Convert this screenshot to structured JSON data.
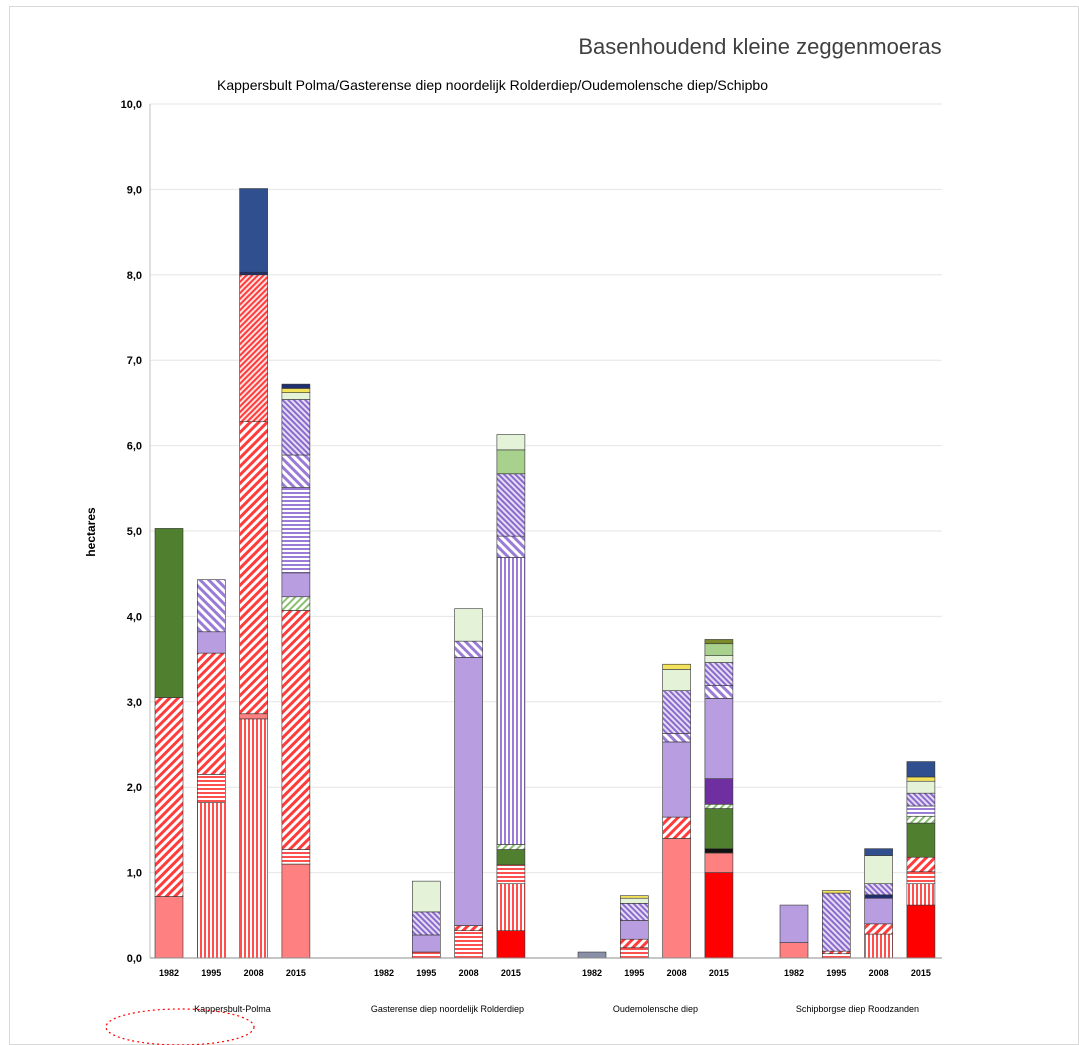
{
  "chart_data": {
    "type": "bar",
    "stacked": true,
    "title": "Basenhoudend kleine zeggenmoeras",
    "subtitle": "Kappersbult Polma/Gasterense diep noordelijk Rolderdiep/Oudemolensche diep/Schipbo",
    "ylabel": "hectares",
    "xlabel": "",
    "ylim": [
      0,
      10
    ],
    "yticks": [
      "0,0",
      "1,0",
      "2,0",
      "3,0",
      "4,0",
      "5,0",
      "6,0",
      "7,0",
      "8,0",
      "9,0",
      "10,0"
    ],
    "grid": true,
    "legend": "none",
    "groups": [
      {
        "name": "Kappersbult-Polma",
        "years": [
          "1982",
          "1995",
          "2008",
          "2015"
        ]
      },
      {
        "name": "Gasterense diep noordelijk Rolderdiep",
        "years": [
          "1982",
          "1995",
          "2008",
          "2015"
        ]
      },
      {
        "name": "Oudemolensche diep",
        "years": [
          "1982",
          "1995",
          "2008",
          "2015"
        ]
      },
      {
        "name": "Schipborgse diep Roodzanden",
        "years": [
          "1982",
          "1995",
          "2008",
          "2015"
        ]
      }
    ],
    "bars": [
      {
        "group": 0,
        "year": "1982",
        "segments": [
          {
            "value": 0.72,
            "style": "pink-solid"
          },
          {
            "value": 2.33,
            "style": "red-diag"
          },
          {
            "value": 1.98,
            "style": "green-dark"
          }
        ]
      },
      {
        "group": 0,
        "year": "1995",
        "segments": [
          {
            "value": 1.82,
            "style": "red-vert"
          },
          {
            "value": 0.33,
            "style": "red-horiz"
          },
          {
            "value": 1.42,
            "style": "red-diag"
          },
          {
            "value": 0.25,
            "style": "lavender-solid"
          },
          {
            "value": 0.61,
            "style": "lavender-diag"
          }
        ]
      },
      {
        "group": 0,
        "year": "2008",
        "segments": [
          {
            "value": 2.8,
            "style": "red-vert"
          },
          {
            "value": 0.06,
            "style": "pink-solid"
          },
          {
            "value": 3.42,
            "style": "red-diag"
          },
          {
            "value": 1.72,
            "style": "red-diag-dense"
          },
          {
            "value": 0.03,
            "style": "navy-solid"
          },
          {
            "value": 0.98,
            "style": "blue-dark"
          }
        ]
      },
      {
        "group": 0,
        "year": "2015",
        "segments": [
          {
            "value": 1.1,
            "style": "pink-solid"
          },
          {
            "value": 0.17,
            "style": "red-horiz"
          },
          {
            "value": 2.8,
            "style": "red-diag"
          },
          {
            "value": 0.16,
            "style": "lightgreen-diag"
          },
          {
            "value": 0.28,
            "style": "lavender-solid"
          },
          {
            "value": 1.0,
            "style": "purple-horiz"
          },
          {
            "value": 0.38,
            "style": "lavender-diag"
          },
          {
            "value": 0.65,
            "style": "purple-diag-dense"
          },
          {
            "value": 0.08,
            "style": "pale-green"
          },
          {
            "value": 0.05,
            "style": "yellow-solid"
          },
          {
            "value": 0.05,
            "style": "navy-solid"
          }
        ]
      },
      {
        "group": 1,
        "year": "1995",
        "segments": [
          {
            "value": 0.07,
            "style": "red-horiz"
          },
          {
            "value": 0.2,
            "style": "lavender-solid"
          },
          {
            "value": 0.27,
            "style": "purple-diag-dense"
          },
          {
            "value": 0.36,
            "style": "pale-green"
          }
        ]
      },
      {
        "group": 1,
        "year": "2008",
        "segments": [
          {
            "value": 0.32,
            "style": "red-horiz"
          },
          {
            "value": 0.06,
            "style": "red-diag"
          },
          {
            "value": 3.14,
            "style": "lavender-solid"
          },
          {
            "value": 0.19,
            "style": "lavender-diag"
          },
          {
            "value": 0.38,
            "style": "pale-green"
          }
        ]
      },
      {
        "group": 1,
        "year": "2015",
        "segments": [
          {
            "value": 0.32,
            "style": "red-solid"
          },
          {
            "value": 0.55,
            "style": "red-vert"
          },
          {
            "value": 0.22,
            "style": "red-horiz"
          },
          {
            "value": 0.18,
            "style": "green-dark"
          },
          {
            "value": 0.06,
            "style": "lightgreen-diag"
          },
          {
            "value": 3.36,
            "style": "purple-vert"
          },
          {
            "value": 0.25,
            "style": "lavender-diag"
          },
          {
            "value": 0.73,
            "style": "purple-diag-dense"
          },
          {
            "value": 0.28,
            "style": "light-green"
          },
          {
            "value": 0.18,
            "style": "pale-green"
          }
        ]
      },
      {
        "group": 2,
        "year": "1982",
        "segments": [
          {
            "value": 0.07,
            "style": "slate-blue"
          }
        ]
      },
      {
        "group": 2,
        "year": "1995",
        "segments": [
          {
            "value": 0.12,
            "style": "red-horiz"
          },
          {
            "value": 0.1,
            "style": "red-diag"
          },
          {
            "value": 0.22,
            "style": "lavender-solid"
          },
          {
            "value": 0.2,
            "style": "purple-diag-dense"
          },
          {
            "value": 0.06,
            "style": "pale-green"
          },
          {
            "value": 0.03,
            "style": "yellow-solid"
          }
        ]
      },
      {
        "group": 2,
        "year": "2008",
        "segments": [
          {
            "value": 1.4,
            "style": "pink-solid"
          },
          {
            "value": 0.25,
            "style": "red-diag"
          },
          {
            "value": 0.88,
            "style": "lavender-solid"
          },
          {
            "value": 0.1,
            "style": "lavender-diag"
          },
          {
            "value": 0.5,
            "style": "purple-diag-dense"
          },
          {
            "value": 0.25,
            "style": "pale-green"
          },
          {
            "value": 0.06,
            "style": "yellow-solid"
          }
        ]
      },
      {
        "group": 2,
        "year": "2015",
        "segments": [
          {
            "value": 1.0,
            "style": "red-solid"
          },
          {
            "value": 0.23,
            "style": "pink-solid"
          },
          {
            "value": 0.05,
            "style": "black-solid"
          },
          {
            "value": 0.47,
            "style": "green-dark"
          },
          {
            "value": 0.05,
            "style": "lightgreen-diag"
          },
          {
            "value": 0.3,
            "style": "purple-dark"
          },
          {
            "value": 0.94,
            "style": "lavender-solid"
          },
          {
            "value": 0.15,
            "style": "lavender-diag"
          },
          {
            "value": 0.27,
            "style": "purple-diag-dense"
          },
          {
            "value": 0.08,
            "style": "pale-green"
          },
          {
            "value": 0.14,
            "style": "light-green"
          },
          {
            "value": 0.05,
            "style": "olive"
          }
        ]
      },
      {
        "group": 3,
        "year": "1982",
        "segments": [
          {
            "value": 0.18,
            "style": "pink-solid"
          },
          {
            "value": 0.44,
            "style": "lavender-solid"
          }
        ]
      },
      {
        "group": 3,
        "year": "1995",
        "segments": [
          {
            "value": 0.05,
            "style": "red-horiz"
          },
          {
            "value": 0.03,
            "style": "red-diag"
          },
          {
            "value": 0.68,
            "style": "purple-diag-dense"
          },
          {
            "value": 0.03,
            "style": "yellow-solid"
          }
        ]
      },
      {
        "group": 3,
        "year": "2008",
        "segments": [
          {
            "value": 0.28,
            "style": "red-vert"
          },
          {
            "value": 0.12,
            "style": "red-diag"
          },
          {
            "value": 0.3,
            "style": "lavender-solid"
          },
          {
            "value": 0.04,
            "style": "navy-solid"
          },
          {
            "value": 0.13,
            "style": "purple-diag-dense"
          },
          {
            "value": 0.33,
            "style": "pale-green"
          },
          {
            "value": 0.08,
            "style": "blue-dark"
          }
        ]
      },
      {
        "group": 3,
        "year": "2015",
        "segments": [
          {
            "value": 0.62,
            "style": "red-solid"
          },
          {
            "value": 0.25,
            "style": "red-vert"
          },
          {
            "value": 0.14,
            "style": "red-horiz"
          },
          {
            "value": 0.17,
            "style": "red-diag"
          },
          {
            "value": 0.4,
            "style": "green-dark"
          },
          {
            "value": 0.08,
            "style": "lightgreen-diag"
          },
          {
            "value": 0.12,
            "style": "purple-horiz"
          },
          {
            "value": 0.15,
            "style": "purple-diag-dense"
          },
          {
            "value": 0.14,
            "style": "pale-green"
          },
          {
            "value": 0.05,
            "style": "yellow-solid"
          },
          {
            "value": 0.18,
            "style": "blue-dark"
          }
        ]
      }
    ],
    "colors": {
      "red": "#ff0000",
      "pink": "#ff8080",
      "green_dark": "#4f7f2f",
      "blue_dark": "#2f4f8f",
      "lavender": "#b89ee0",
      "pale_green": "#e4f2d8",
      "light_green": "#a9d18e",
      "yellow": "#f2e15a",
      "purple_dark": "#6f2fa0"
    },
    "annotations": [
      {
        "type": "ellipse",
        "color": "#ff0000",
        "style": "dotted",
        "target": "Kappersbult-Polma"
      }
    ]
  }
}
